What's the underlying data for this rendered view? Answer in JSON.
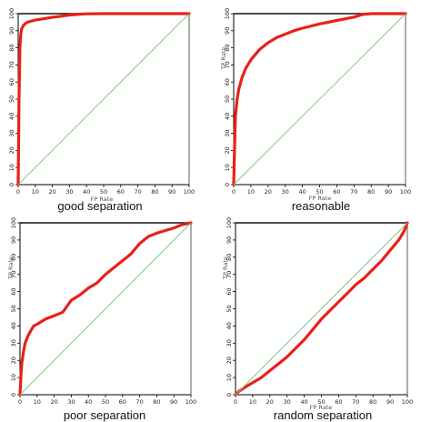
{
  "colors": {
    "curve": "#e8201a",
    "diagonal": "#7fc97f",
    "axis": "#000000",
    "frame": "#333333",
    "top": "#111111"
  },
  "chart_data": [
    {
      "type": "line",
      "caption": "good separation",
      "xlabel": "FP Rate",
      "ylabel": "",
      "xlim": [
        0,
        100
      ],
      "ylim": [
        0,
        100
      ],
      "xticks": [
        0,
        10,
        20,
        30,
        40,
        50,
        60,
        70,
        80,
        90,
        100
      ],
      "yticks": [
        0,
        10,
        20,
        30,
        40,
        50,
        60,
        70,
        80,
        90,
        100
      ],
      "grid": false,
      "series": [
        {
          "name": "ROC",
          "x": [
            0,
            0.5,
            1,
            1.5,
            2,
            3,
            4,
            5,
            7,
            10,
            15,
            20,
            25,
            30,
            35,
            40,
            50,
            60,
            70,
            80,
            90,
            100
          ],
          "y": [
            0,
            50,
            80,
            88,
            91,
            93,
            94,
            94.8,
            95.5,
            96.2,
            97,
            97.8,
            98.5,
            99.2,
            99.6,
            99.9,
            100,
            100,
            100,
            100,
            100,
            100
          ]
        },
        {
          "name": "random",
          "x": [
            0,
            100
          ],
          "y": [
            0,
            100
          ]
        }
      ]
    },
    {
      "type": "line",
      "caption": "reasonable",
      "xlabel": "FP Rate",
      "ylabel": "TP Rate",
      "xlim": [
        0,
        100
      ],
      "ylim": [
        0,
        100
      ],
      "xticks": [
        0,
        10,
        20,
        30,
        40,
        50,
        60,
        70,
        80,
        90,
        100
      ],
      "yticks": [
        0,
        10,
        20,
        30,
        40,
        50,
        60,
        70,
        80,
        90,
        100
      ],
      "grid": false,
      "series": [
        {
          "name": "ROC",
          "x": [
            0,
            0.5,
            1,
            2,
            3,
            5,
            7,
            10,
            15,
            20,
            25,
            30,
            35,
            40,
            50,
            60,
            70,
            75,
            80,
            85,
            90,
            95,
            100
          ],
          "y": [
            0,
            20,
            40,
            50,
            56,
            63,
            68,
            73,
            79,
            83,
            86,
            88,
            90,
            91.5,
            94,
            96,
            98,
            99.5,
            100,
            100,
            100,
            100,
            100
          ]
        },
        {
          "name": "random",
          "x": [
            0,
            100
          ],
          "y": [
            0,
            100
          ]
        }
      ]
    },
    {
      "type": "line",
      "caption": "poor separation",
      "xlabel": "",
      "ylabel": "TP Rate",
      "xlim": [
        0,
        100
      ],
      "ylim": [
        0,
        100
      ],
      "xticks": [
        0,
        10,
        20,
        30,
        40,
        50,
        60,
        70,
        80,
        90,
        100
      ],
      "yticks": [
        0,
        10,
        20,
        30,
        40,
        50,
        60,
        70,
        80,
        90,
        100
      ],
      "grid": false,
      "series": [
        {
          "name": "ROC",
          "x": [
            0,
            0.5,
            1,
            2,
            3,
            5,
            8,
            10,
            15,
            20,
            25,
            30,
            35,
            40,
            45,
            50,
            55,
            60,
            65,
            70,
            75,
            80,
            85,
            90,
            95,
            100
          ],
          "y": [
            0,
            10,
            18,
            25,
            30,
            35,
            40,
            41,
            44,
            46,
            48,
            55,
            58,
            62,
            65,
            70,
            74,
            78,
            82,
            88,
            92,
            94,
            95.5,
            97,
            99,
            100
          ]
        },
        {
          "name": "random",
          "x": [
            0,
            100
          ],
          "y": [
            0,
            100
          ]
        }
      ]
    },
    {
      "type": "line",
      "caption": "random separation",
      "xlabel": "FP Rate",
      "ylabel": "TP Rate",
      "xlim": [
        0,
        100
      ],
      "ylim": [
        0,
        100
      ],
      "xticks": [
        0,
        10,
        20,
        30,
        40,
        50,
        60,
        70,
        80,
        90,
        100
      ],
      "yticks": [
        0,
        10,
        20,
        30,
        40,
        50,
        60,
        70,
        80,
        90,
        100
      ],
      "grid": false,
      "series": [
        {
          "name": "ROC",
          "x": [
            0,
            2,
            5,
            10,
            15,
            20,
            25,
            30,
            35,
            40,
            45,
            50,
            55,
            60,
            65,
            70,
            75,
            80,
            85,
            90,
            95,
            98,
            100
          ],
          "y": [
            0,
            2,
            4,
            7,
            10,
            14,
            18,
            22,
            27,
            32,
            38,
            44,
            49,
            54,
            59,
            64,
            68,
            73,
            78,
            84,
            90,
            95,
            100
          ]
        },
        {
          "name": "random",
          "x": [
            0,
            100
          ],
          "y": [
            0,
            100
          ]
        }
      ]
    }
  ]
}
